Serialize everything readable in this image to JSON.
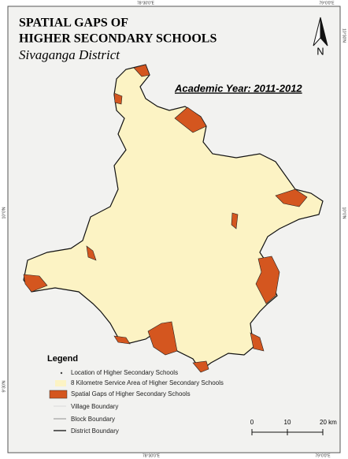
{
  "title": {
    "lines": [
      "SPATIAL GAPS OF",
      "HIGHER SECONDARY SCHOOLS"
    ],
    "district": "Sivaganga District"
  },
  "academic_year": "Academic Year: 2011-2012",
  "north_label": "N",
  "legend": {
    "title": "Legend",
    "items": [
      "Location of Higher Secondary Schools",
      "8 Kilometre Service Area of Higher Secondary Schools",
      "Spatial Gaps of Higher Secondary Schools",
      "Village Boundary",
      "Block Boundary",
      "District Boundary"
    ]
  },
  "scale_bar": {
    "labels": [
      "0",
      "10",
      "20 km"
    ]
  },
  "graticule": {
    "top": [
      "78°30'0\"E",
      "79°0'0\"E"
    ],
    "bottom": [
      "78°30'0\"E",
      "79°0'0\"E"
    ],
    "left": [
      "10°0'N",
      "9°30'N"
    ],
    "right": [
      "10°30'N",
      "10°0'N"
    ]
  }
}
